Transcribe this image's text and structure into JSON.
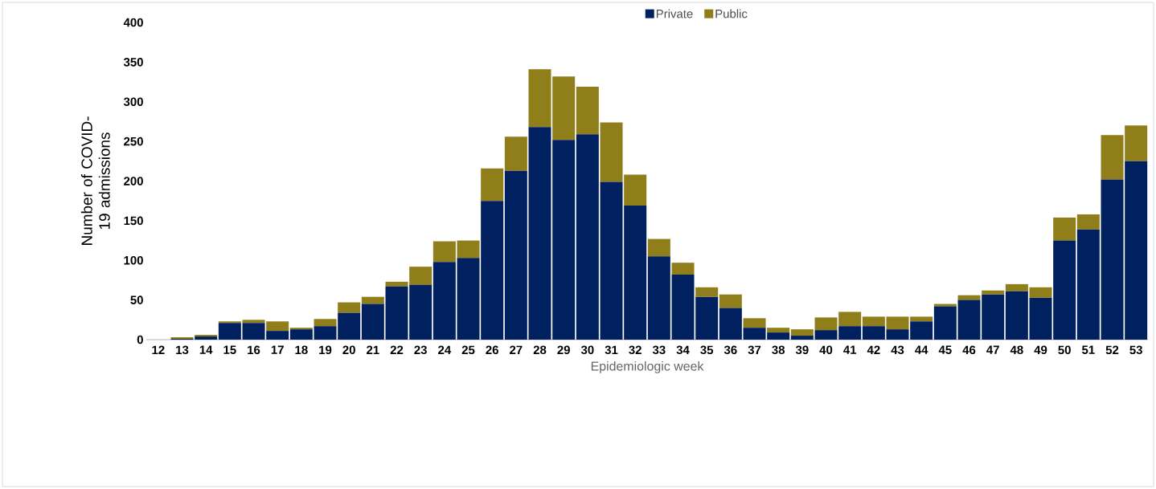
{
  "chart_data": {
    "type": "bar",
    "stacked": true,
    "xlabel": "Epidemiologic week",
    "ylabel": "Number of COVID-19 admissions",
    "categories": [
      "12",
      "13",
      "14",
      "15",
      "16",
      "17",
      "18",
      "19",
      "20",
      "21",
      "22",
      "23",
      "24",
      "25",
      "26",
      "27",
      "28",
      "29",
      "30",
      "31",
      "32",
      "33",
      "34",
      "35",
      "36",
      "37",
      "38",
      "39",
      "40",
      "41",
      "42",
      "43",
      "44",
      "45",
      "46",
      "47",
      "48",
      "49",
      "50",
      "51",
      "52",
      "53"
    ],
    "series": [
      {
        "name": "Private",
        "color": "#002060",
        "values": [
          0,
          1,
          4,
          21,
          21,
          11,
          13,
          17,
          34,
          45,
          67,
          69,
          98,
          103,
          175,
          213,
          268,
          252,
          259,
          199,
          169,
          105,
          82,
          54,
          40,
          15,
          9,
          5,
          12,
          17,
          17,
          13,
          23,
          42,
          50,
          57,
          61,
          53,
          125,
          139,
          202,
          225
        ]
      },
      {
        "name": "Public",
        "color": "#8f7e1a",
        "values": [
          0,
          2,
          2,
          2,
          4,
          12,
          2,
          9,
          13,
          9,
          6,
          23,
          26,
          22,
          41,
          43,
          73,
          80,
          60,
          75,
          39,
          22,
          15,
          12,
          17,
          12,
          6,
          8,
          16,
          18,
          12,
          16,
          6,
          3,
          6,
          5,
          9,
          13,
          29,
          19,
          56,
          45
        ]
      }
    ],
    "ylim": [
      0,
      400
    ],
    "yticks": [
      0,
      50,
      100,
      150,
      200,
      250,
      300,
      350,
      400
    ],
    "grid": false,
    "legend": "top"
  }
}
